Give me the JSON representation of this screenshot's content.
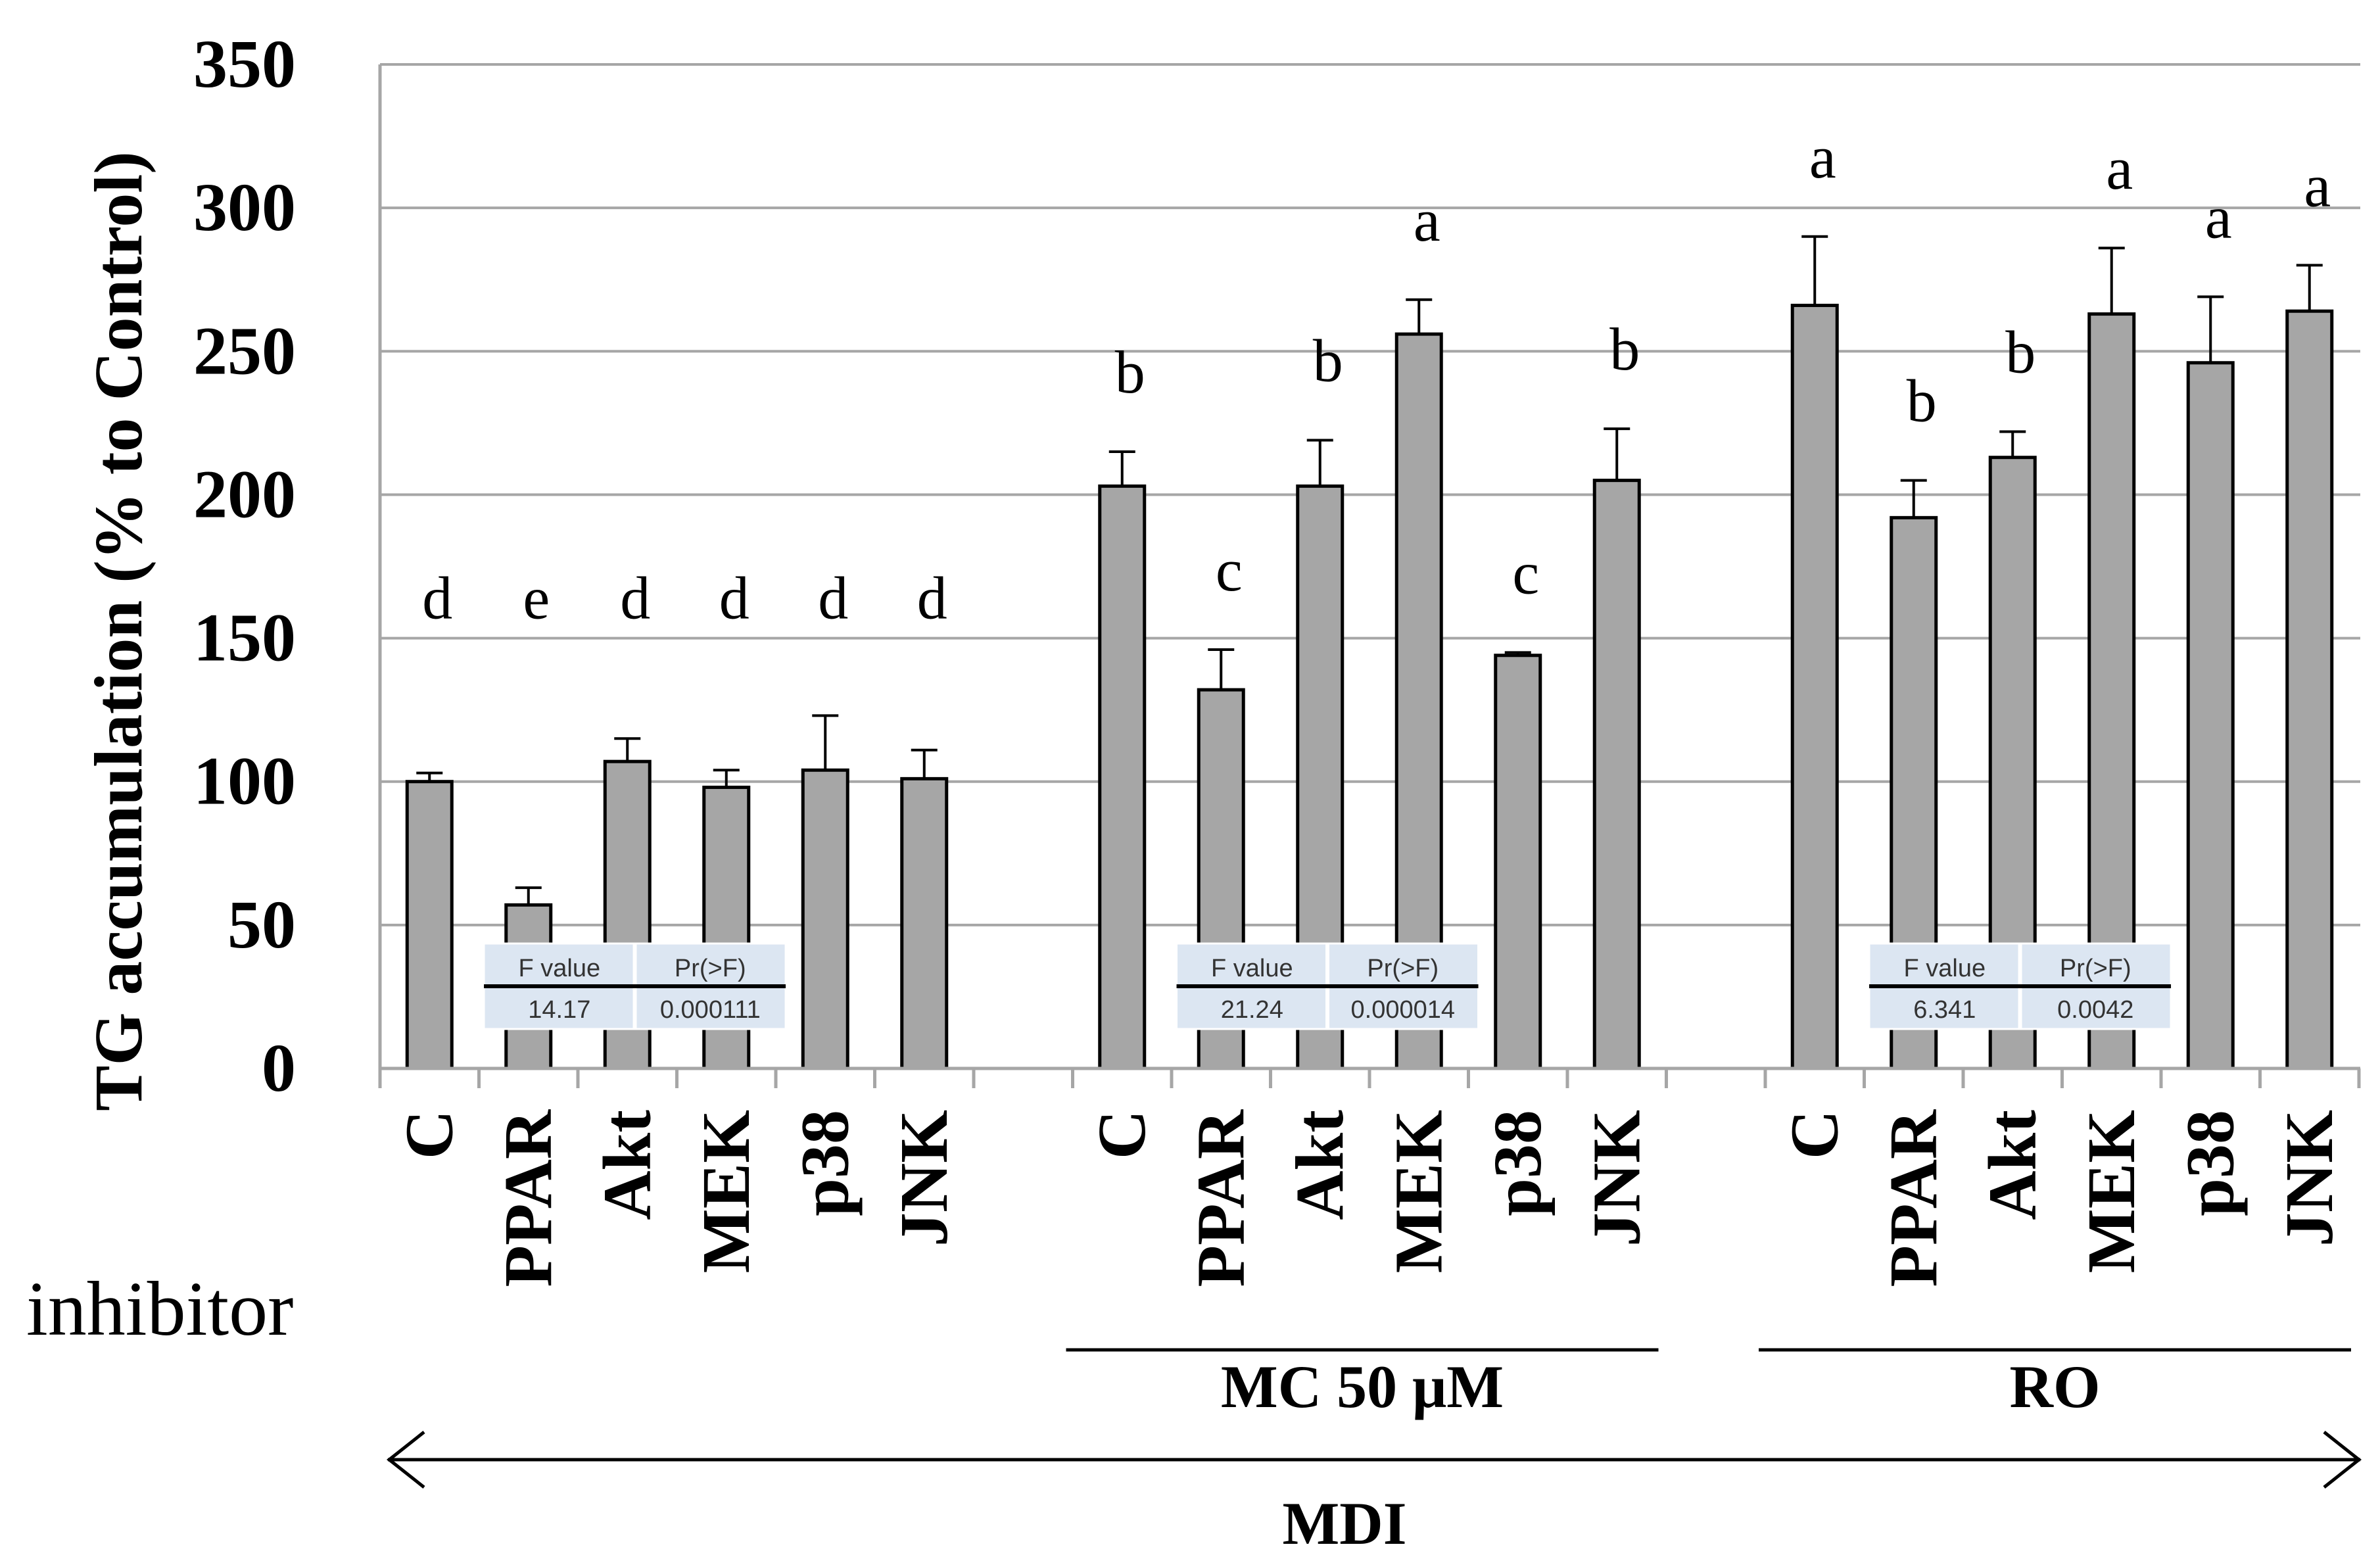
{
  "chart_data": {
    "type": "bar",
    "ylabel": "TG accumulation (% to  Control)",
    "ylim": [
      0,
      350
    ],
    "yticks": [
      "0",
      "50",
      "100",
      "150",
      "200",
      "250",
      "300",
      "350"
    ],
    "grid": true,
    "inhibitor_label": "inhibitor",
    "bar_color": "#a6a6a6",
    "groups": [
      {
        "name": "",
        "categories": [
          "C",
          "PPAR",
          "Akt",
          "MEK",
          "p38",
          "JNK"
        ],
        "values": [
          100,
          57,
          107,
          98,
          104,
          101
        ],
        "errors": [
          3,
          6,
          8,
          6,
          19,
          10
        ],
        "letters": [
          "d",
          "e",
          "d",
          "d",
          "d",
          "d"
        ],
        "anova": {
          "f_label": "F value",
          "p_label": "Pr(>F)",
          "f_value": "14.17",
          "p_value": "0.000111"
        }
      },
      {
        "name": "MC 50 μM",
        "categories": [
          "C",
          "PPAR",
          "Akt",
          "MEK",
          "p38",
          "JNK"
        ],
        "values": [
          203,
          132,
          203,
          256,
          144,
          205
        ],
        "errors": [
          12,
          14,
          16,
          12,
          1,
          18
        ],
        "letters": [
          "b",
          "c",
          "b",
          "a",
          "c",
          "b"
        ],
        "anova": {
          "f_label": "F value",
          "p_label": "Pr(>F)",
          "f_value": "21.24",
          "p_value": "0.000014"
        }
      },
      {
        "name": "RO",
        "categories": [
          "C",
          "PPAR",
          "Akt",
          "MEK",
          "p38",
          "JNK"
        ],
        "values": [
          266,
          192,
          213,
          263,
          246,
          264
        ],
        "errors": [
          24,
          13,
          9,
          23,
          23,
          16
        ],
        "letters": [
          "a",
          "b",
          "b",
          "a",
          "a",
          "a"
        ],
        "anova": {
          "f_label": "F value",
          "p_label": "Pr(>F)",
          "f_value": "6.341",
          "p_value": "0.0042"
        }
      }
    ],
    "bracket_label": "MDI"
  }
}
